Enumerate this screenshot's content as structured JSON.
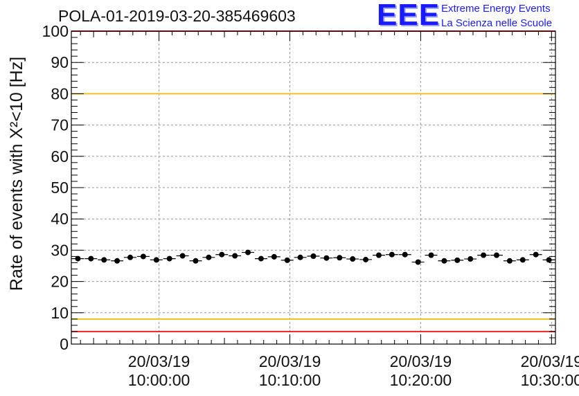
{
  "title": "POLA-01-2019-03-20-385469603",
  "logo": {
    "mark": "EEE",
    "line1": "Extreme Energy Events",
    "line2": "La Scienza nelle Scuole"
  },
  "colors": {
    "limit_red": "#ee2222",
    "limit_yellow": "#f0c020",
    "points": "#000000",
    "grid": "#999999",
    "logo_blue": "#1a1aff"
  },
  "chart_data": {
    "type": "scatter",
    "title": "POLA-01-2019-03-20-385469603",
    "xlabel": "",
    "ylabel": "Rate of events with X²<10 [Hz]",
    "ylim": [
      0,
      100
    ],
    "xlim_minutes": [
      -6.7,
      30.3
    ],
    "grid": true,
    "yticks": [
      0,
      10,
      20,
      30,
      40,
      50,
      60,
      70,
      80,
      90,
      100
    ],
    "xticks": [
      {
        "minute": 0,
        "date": "20/03/19",
        "time": "10:00:00"
      },
      {
        "minute": 10,
        "date": "20/03/19",
        "time": "10:10:00"
      },
      {
        "minute": 20,
        "date": "20/03/19",
        "time": "10:20:00"
      },
      {
        "minute": 30,
        "date": "20/03/19",
        "time": "10:30:00"
      }
    ],
    "horizontal_lines": [
      {
        "y": 100,
        "color": "red"
      },
      {
        "y": 80,
        "color": "yellow"
      },
      {
        "y": 8,
        "color": "yellow"
      },
      {
        "y": 4,
        "color": "red"
      }
    ],
    "series": [
      {
        "x_minutes": [
          -6.2,
          -5.2,
          -4.2,
          -3.2,
          -2.2,
          -1.2,
          -0.2,
          0.8,
          1.8,
          2.8,
          3.8,
          4.8,
          5.8,
          6.8,
          7.8,
          8.8,
          9.8,
          10.8,
          11.8,
          12.8,
          13.8,
          14.8,
          15.8,
          16.8,
          17.8,
          18.8,
          19.8,
          20.8,
          21.8,
          22.8,
          23.8,
          24.8,
          25.8,
          26.8,
          27.8,
          28.8,
          29.8
        ],
        "y": [
          27.3,
          27.3,
          26.9,
          26.6,
          27.7,
          28.0,
          26.9,
          27.3,
          28.2,
          26.6,
          27.7,
          28.6,
          28.2,
          29.3,
          27.3,
          27.9,
          26.8,
          27.7,
          28.1,
          27.5,
          27.6,
          27.2,
          27.0,
          28.4,
          28.6,
          28.6,
          26.2,
          28.4,
          26.6,
          26.8,
          27.2,
          28.4,
          28.4,
          26.6,
          26.9,
          28.6,
          26.9
        ]
      }
    ]
  }
}
